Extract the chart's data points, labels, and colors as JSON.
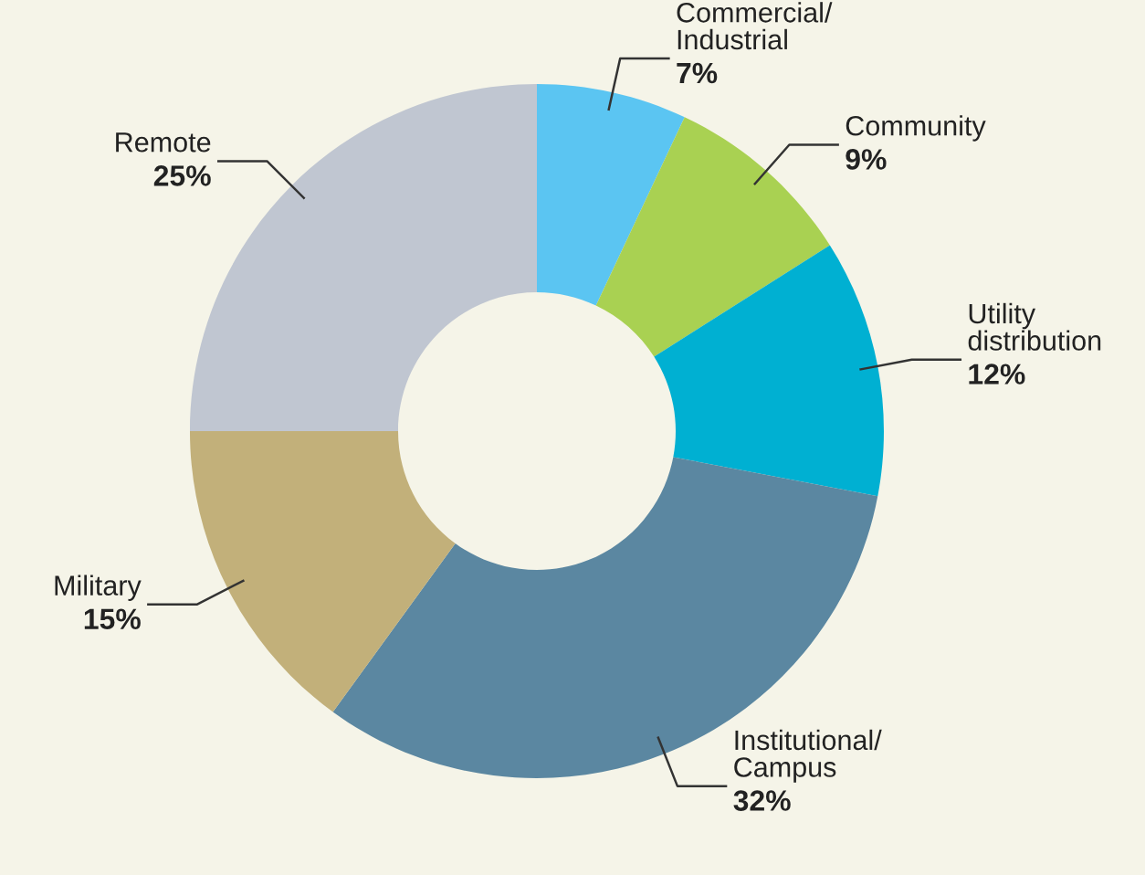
{
  "chart_data": {
    "type": "donut",
    "categories": [
      "Commercial/\nIndustrial",
      "Community",
      "Utility\ndistribution",
      "Institutional/\nCampus",
      "Military",
      "Remote"
    ],
    "values": [
      7,
      9,
      12,
      32,
      15,
      25
    ],
    "colors": [
      "#5bc5f2",
      "#a9d152",
      "#00b0d2",
      "#5b87a1",
      "#c2b07a",
      "#c0c6d1"
    ],
    "value_labels": [
      "7%",
      "9%",
      "12%",
      "32%",
      "15%",
      "25%"
    ]
  }
}
